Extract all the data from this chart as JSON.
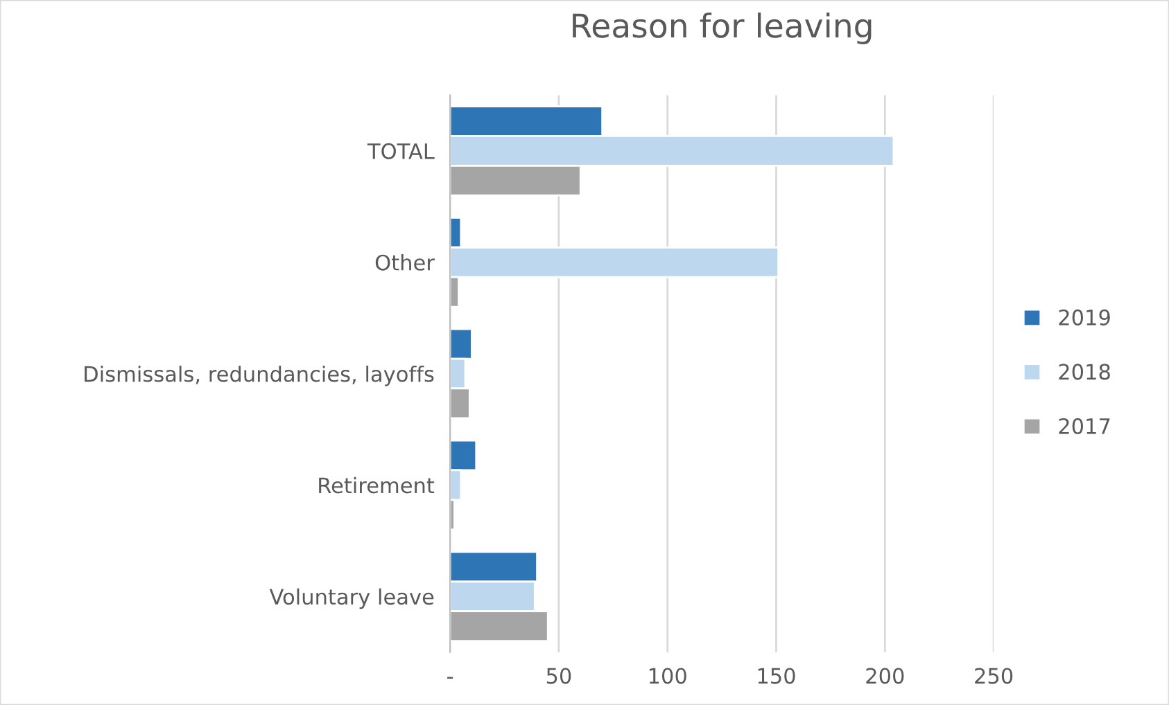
{
  "chart_data": {
    "type": "bar",
    "orientation": "horizontal",
    "title": "Reason for leaving",
    "categories": [
      "TOTAL",
      "Other",
      "Dismissals, redundancies, layoffs",
      "Retirement",
      "Voluntary leave"
    ],
    "series": [
      {
        "name": "2019",
        "color": "#2e75b6",
        "values": [
          70,
          5,
          10,
          12,
          40
        ]
      },
      {
        "name": "2018",
        "color": "#bdd7ee",
        "values": [
          204,
          151,
          7,
          5,
          39
        ]
      },
      {
        "name": "2017",
        "color": "#a5a5a5",
        "values": [
          60,
          4,
          9,
          2,
          45
        ]
      }
    ],
    "xlim": [
      0,
      250
    ],
    "xticks": [
      {
        "value": 0,
        "label": "-"
      },
      50,
      100,
      150,
      200,
      250
    ],
    "grid": "x",
    "legend": "right"
  }
}
